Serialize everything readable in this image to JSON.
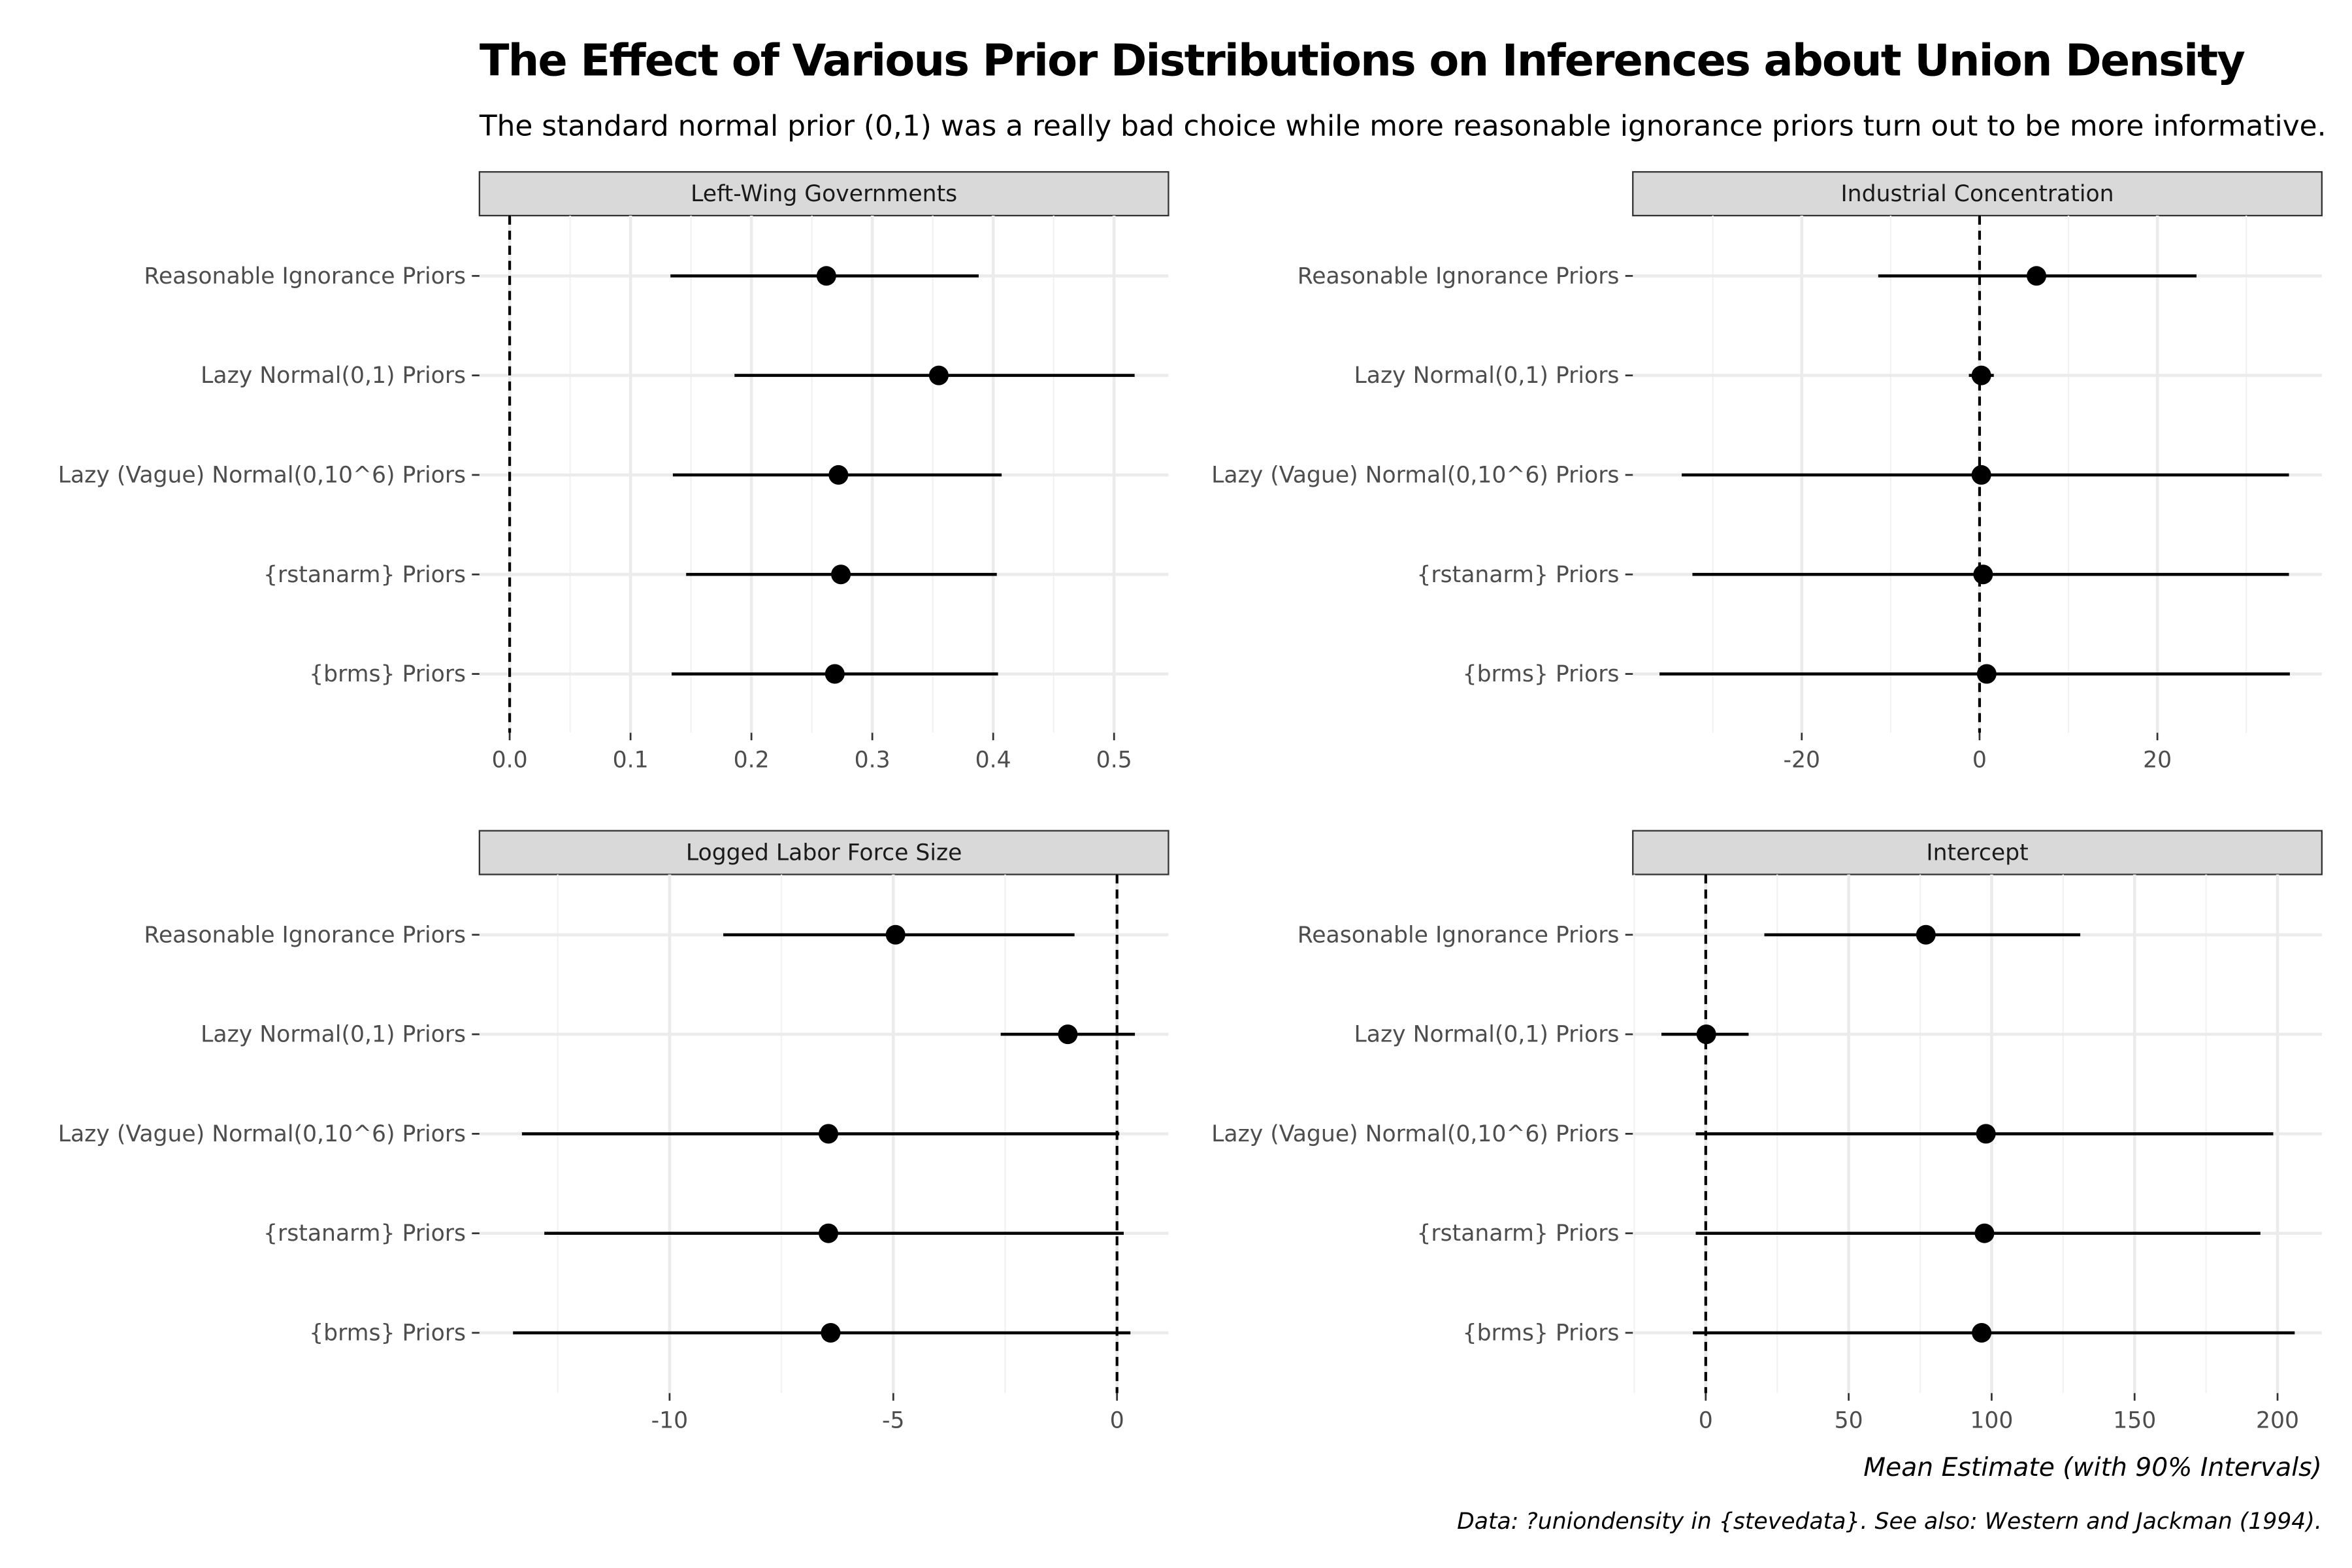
{
  "chart_data": {
    "type": "scatter",
    "title": "The Effect of Various Prior Distributions on Inferences about Union Density",
    "subtitle": "The standard normal prior (0,1) was a really bad choice while more reasonable ignorance priors turn out to be more informative.",
    "xlabel": "Mean Estimate (with 90% Intervals)",
    "caption": "Data: ?uniondensity in {stevedata}. See also: Western and Jackman (1994).",
    "grid": true,
    "reference_line_x": 0,
    "categories": [
      "Reasonable Ignorance Priors",
      "Lazy Normal(0,1) Priors",
      "Lazy (Vague) Normal(0,10^6) Priors",
      "{rstanarm} Priors",
      "{brms} Priors"
    ],
    "panels": [
      {
        "name": "Left-Wing Governments",
        "xlim": [
          -0.025,
          0.545
        ],
        "ticks": [
          0.0,
          0.1,
          0.2,
          0.3,
          0.4,
          0.5
        ],
        "tick_labels": [
          "0.0",
          "0.1",
          "0.2",
          "0.3",
          "0.4",
          "0.5"
        ],
        "estimates": [
          0.262,
          0.355,
          0.272,
          0.274,
          0.269
        ],
        "lower": [
          0.133,
          0.186,
          0.135,
          0.146,
          0.134
        ],
        "upper": [
          0.388,
          0.517,
          0.407,
          0.403,
          0.404
        ]
      },
      {
        "name": "Industrial Concentration",
        "xlim": [
          -39,
          38.5
        ],
        "ticks": [
          -20,
          0,
          20
        ],
        "tick_labels": [
          "-20",
          "0",
          "20"
        ],
        "estimates": [
          6.4,
          0.2,
          0.2,
          0.4,
          0.8
        ],
        "lower": [
          -11.4,
          -1.2,
          -33.5,
          -32.3,
          -36
        ],
        "upper": [
          24.4,
          1.6,
          34.8,
          34.8,
          34.9
        ]
      },
      {
        "name": "Logged Labor Force Size",
        "xlim": [
          -14.25,
          1.15
        ],
        "ticks": [
          -10,
          -5,
          0
        ],
        "tick_labels": [
          "-10",
          "-5",
          "0"
        ],
        "estimates": [
          -4.95,
          -1.1,
          -6.45,
          -6.45,
          -6.4
        ],
        "lower": [
          -8.8,
          -2.6,
          -13.3,
          -12.8,
          -13.5
        ],
        "upper": [
          -0.95,
          0.4,
          0.05,
          0.15,
          0.3
        ]
      },
      {
        "name": "Intercept",
        "xlim": [
          -25.5,
          215.5
        ],
        "ticks": [
          0,
          50,
          100,
          150,
          200
        ],
        "tick_labels": [
          "0",
          "50",
          "100",
          "150",
          "200"
        ],
        "estimates": [
          77,
          0.2,
          98,
          97.5,
          96.5
        ],
        "lower": [
          20.5,
          -15.5,
          -3.5,
          -3.5,
          -4.5
        ],
        "upper": [
          131,
          15,
          198.5,
          194,
          206
        ]
      }
    ]
  }
}
